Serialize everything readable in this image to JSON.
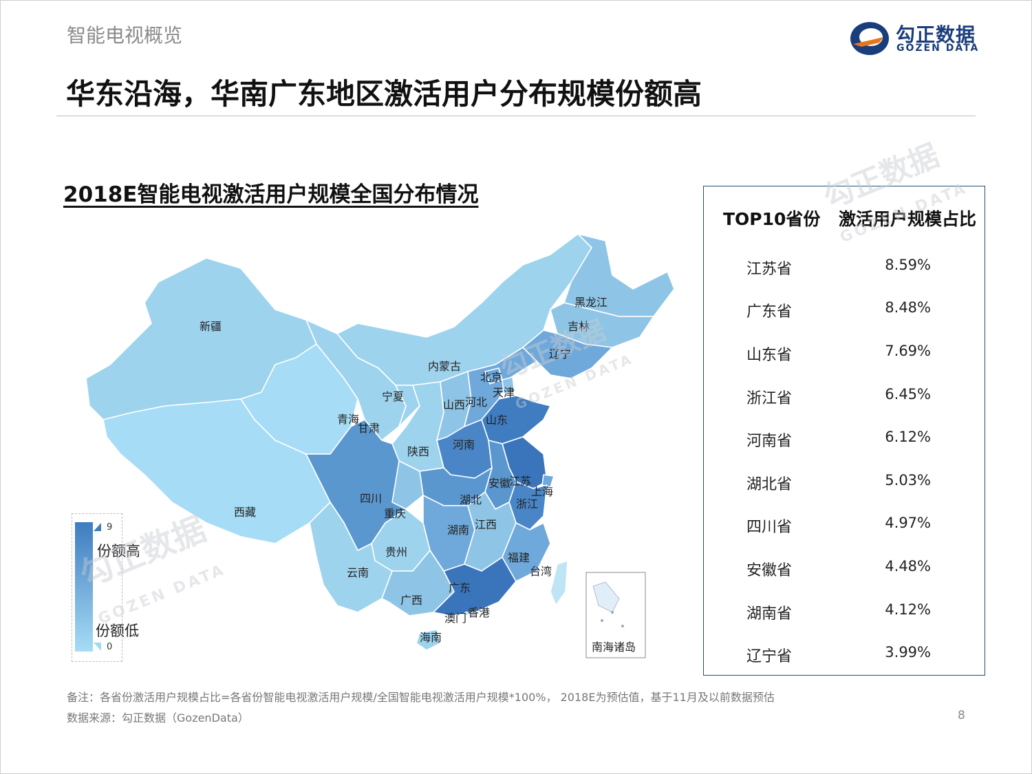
{
  "header": {
    "section": "智能电视概览",
    "headline": "华东沿海，华南广东地区激活用户分布规模份额高",
    "logo_cn": "勾正数据",
    "logo_en": "GOZEN DATA"
  },
  "map": {
    "title": "2018E智能电视激活用户规模全国分布情况",
    "inset_label": "南海诸岛",
    "provinces": [
      {
        "name": "新疆",
        "shade": "light"
      },
      {
        "name": "西藏",
        "shade": "lightest"
      },
      {
        "name": "青海",
        "shade": "lightest"
      },
      {
        "name": "甘肃",
        "shade": "light"
      },
      {
        "name": "内蒙古",
        "shade": "light"
      },
      {
        "name": "宁夏",
        "shade": "light"
      },
      {
        "name": "黑龙江",
        "shade": "medium-light"
      },
      {
        "name": "吉林",
        "shade": "medium-light"
      },
      {
        "name": "辽宁",
        "shade": "medium"
      },
      {
        "name": "北京",
        "shade": "medium"
      },
      {
        "name": "天津",
        "shade": "medium-light"
      },
      {
        "name": "河北",
        "shade": "medium"
      },
      {
        "name": "山西",
        "shade": "medium-light"
      },
      {
        "name": "山东",
        "shade": "dark"
      },
      {
        "name": "陕西",
        "shade": "light"
      },
      {
        "name": "河南",
        "shade": "dark"
      },
      {
        "name": "江苏",
        "shade": "darkest"
      },
      {
        "name": "上海",
        "shade": "medium"
      },
      {
        "name": "安徽",
        "shade": "medium-dark"
      },
      {
        "name": "浙江",
        "shade": "dark"
      },
      {
        "name": "湖北",
        "shade": "medium-dark"
      },
      {
        "name": "四川",
        "shade": "medium-dark"
      },
      {
        "name": "重庆",
        "shade": "medium-light"
      },
      {
        "name": "江西",
        "shade": "medium-light"
      },
      {
        "name": "湖南",
        "shade": "medium-dark"
      },
      {
        "name": "贵州",
        "shade": "light"
      },
      {
        "name": "云南",
        "shade": "light"
      },
      {
        "name": "福建",
        "shade": "medium"
      },
      {
        "name": "台湾",
        "shade": "lightest"
      },
      {
        "name": "广西",
        "shade": "medium-light"
      },
      {
        "name": "广东",
        "shade": "darkest"
      },
      {
        "name": "澳门",
        "shade": "light"
      },
      {
        "name": "香港",
        "shade": "light"
      },
      {
        "name": "海南",
        "shade": "light"
      }
    ],
    "legend": {
      "max": "9",
      "min": "0",
      "high_label": "份额高",
      "low_label": "份额低",
      "color_high": "#3f7cc0",
      "color_low": "#a6dcf5"
    }
  },
  "table": {
    "header_province": "TOP10省份",
    "header_share": "激活用户规模占比",
    "rows": [
      {
        "province": "江苏省",
        "share": "8.59%"
      },
      {
        "province": "广东省",
        "share": "8.48%"
      },
      {
        "province": "山东省",
        "share": "7.69%"
      },
      {
        "province": "浙江省",
        "share": "6.45%"
      },
      {
        "province": "河南省",
        "share": "6.12%"
      },
      {
        "province": "湖北省",
        "share": "5.03%"
      },
      {
        "province": "四川省",
        "share": "4.97%"
      },
      {
        "province": "安徽省",
        "share": "4.48%"
      },
      {
        "province": "湖南省",
        "share": "4.12%"
      },
      {
        "province": "辽宁省",
        "share": "3.99%"
      }
    ],
    "border_color": "#1f4e79"
  },
  "footer": {
    "note": "备注：各省份激活用户规模占比=各省份智能电视激活用户规模/全国智能电视激活用户规模*100%， 2018E为预估值，基于11月及以前数据预估",
    "source": "数据来源：勾正数据（GozenData）",
    "page": "8"
  },
  "watermark": {
    "cn": "勾正数据",
    "en": "GOZEN DATA"
  }
}
